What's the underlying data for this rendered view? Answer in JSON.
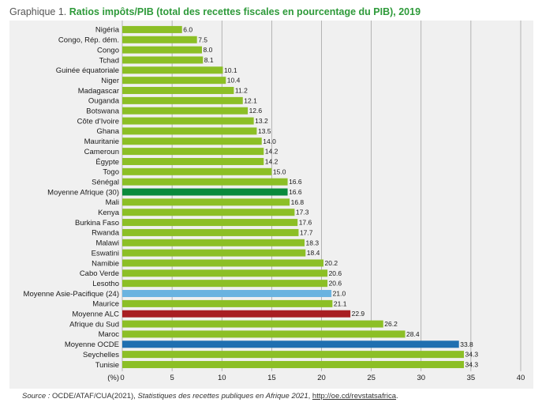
{
  "title": {
    "lead": "Graphique 1.",
    "main": "Ratios impôts/PIB (total des recettes fiscales en pourcentage du PIB), 2019"
  },
  "source": {
    "prefix": "Source : ",
    "text": "OCDE/ATAF/CUA(2021), ",
    "publication": "Statistiques des recettes publiques en Afrique 2021",
    "sep": ", ",
    "link": "http://oe.cd/revstatsafrica",
    "end": "."
  },
  "colors": {
    "default": "#8cbf26",
    "moyenne_afrique": "#0a8a3c",
    "moyenne_asie_pacifique": "#6ab3e0",
    "moyenne_alc": "#a81e22",
    "moyenne_ocde": "#1f6fb0"
  },
  "chart_data": {
    "type": "bar",
    "orientation": "horizontal",
    "title": "Ratios impôts/PIB (total des recettes fiscales en pourcentage du PIB), 2019",
    "xlabel": "(%)",
    "xlim": [
      0,
      40
    ],
    "xticks": [
      0,
      5,
      10,
      15,
      20,
      25,
      30,
      35,
      40
    ],
    "grid": true,
    "categories": [
      "Nigéria",
      "Congo, Rép. dém.",
      "Congo",
      "Tchad",
      "Guinée équatoriale",
      "Niger",
      "Madagascar",
      "Ouganda",
      "Botswana",
      "Côte d’Ivoire",
      "Ghana",
      "Mauritanie",
      "Cameroun",
      "Égypte",
      "Togo",
      "Sénégal",
      "Moyenne Afrique (30)",
      "Mali",
      "Kenya",
      "Burkina Faso",
      "Rwanda",
      "Malawi",
      "Eswatini",
      "Namibie",
      "Cabo Verde",
      "Lesotho",
      "Moyenne Asie-Pacifique (24)",
      "Maurice",
      "Moyenne ALC",
      "Afrique du Sud",
      "Maroc",
      "Moyenne OCDE",
      "Seychelles",
      "Tunisie"
    ],
    "values": [
      6.0,
      7.5,
      8.0,
      8.1,
      10.1,
      10.4,
      11.2,
      12.1,
      12.6,
      13.2,
      13.5,
      14.0,
      14.2,
      14.2,
      15.0,
      16.6,
      16.6,
      16.8,
      17.3,
      17.6,
      17.7,
      18.3,
      18.4,
      20.2,
      20.6,
      20.6,
      21.0,
      21.1,
      22.9,
      26.2,
      28.4,
      33.8,
      34.3,
      34.3
    ],
    "labels": [
      "6.0",
      "7.5",
      "8.0",
      "8.1",
      "10.1",
      "10.4",
      "11.2",
      "12.1",
      "12.6",
      "13.2",
      "13.5",
      "14.0",
      "14.2",
      "14.2",
      "15.0",
      "16.6",
      "16.6",
      "16.8",
      "17.3",
      "17.6",
      "17.7",
      "18.3",
      "18.4",
      "20.2",
      "20.6",
      "20.6",
      "21.0",
      "21.1",
      "22.9",
      "26.2",
      "28.4",
      "33.8",
      "34.3",
      "34.3"
    ],
    "highlights": {
      "Moyenne Afrique (30)": "moyenne_afrique",
      "Moyenne Asie-Pacifique (24)": "moyenne_asie_pacifique",
      "Moyenne ALC": "moyenne_alc",
      "Moyenne OCDE": "moyenne_ocde"
    }
  }
}
